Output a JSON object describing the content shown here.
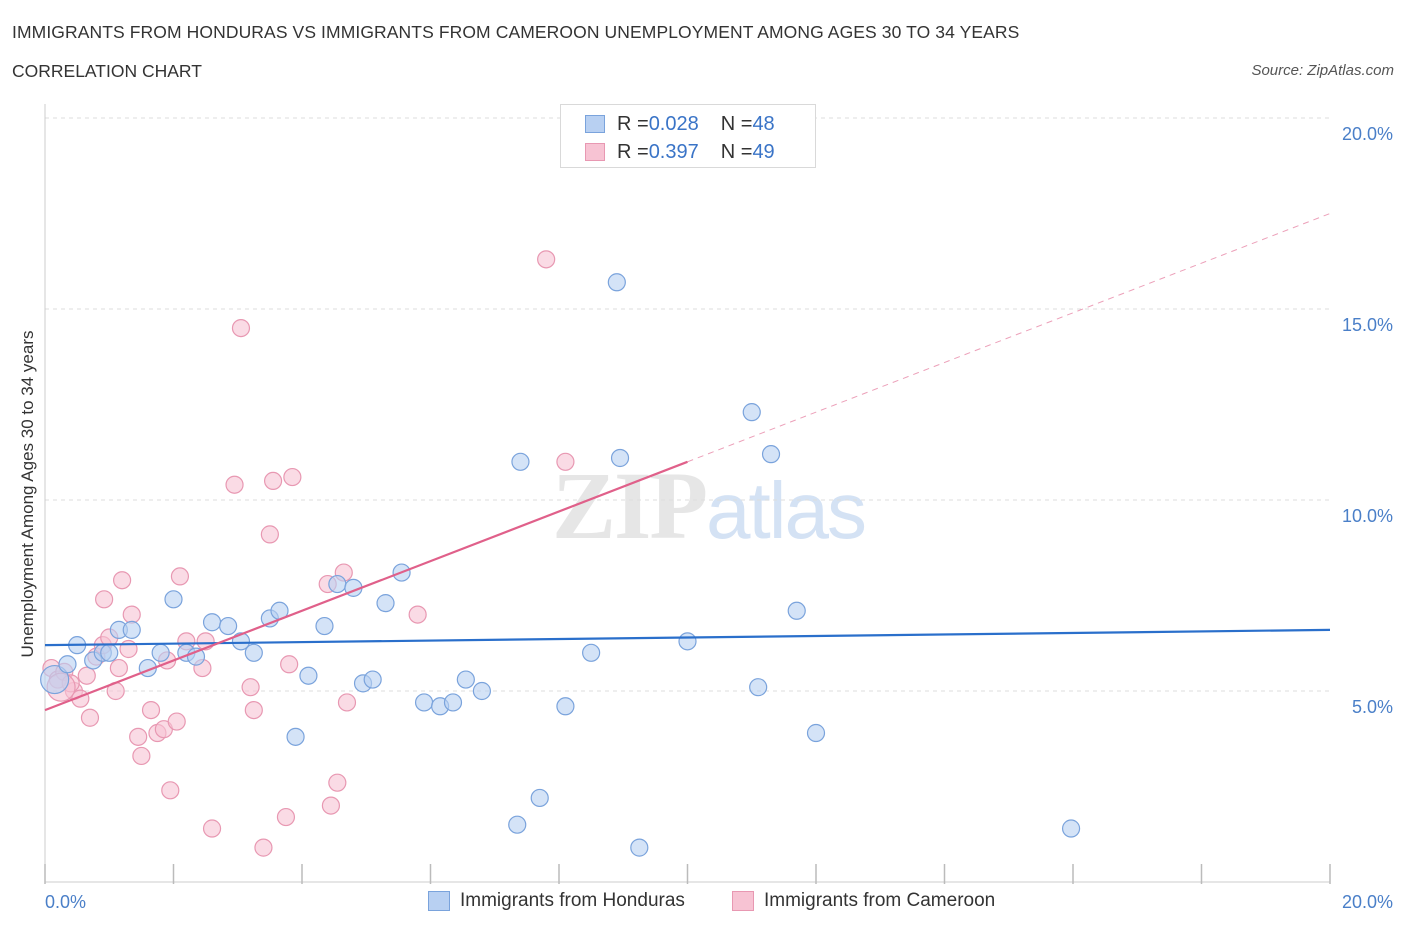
{
  "title": "IMMIGRANTS FROM HONDURAS VS IMMIGRANTS FROM CAMEROON UNEMPLOYMENT AMONG AGES 30 TO 34 YEARS",
  "subtitle": "CORRELATION CHART",
  "source": "Source: ZipAtlas.com",
  "watermark": {
    "zip": "ZIP",
    "atlas": "atlas"
  },
  "legend_top": {
    "honduras": {
      "r_label": "R = ",
      "r_value": "0.028",
      "n_label": "N = ",
      "n_value": "48"
    },
    "cameroon": {
      "r_label": "R = ",
      "r_value": "0.397",
      "n_label": "N = ",
      "n_value": "49"
    }
  },
  "colors": {
    "honduras_fill": "#b8d0f2",
    "honduras_stroke": "#7aa3dc",
    "honduras_line": "#2a6fcb",
    "cameroon_fill": "#f7c3d3",
    "cameroon_stroke": "#e898b2",
    "cameroon_line": "#e0608a",
    "grid": "#dddddd",
    "axis_text": "#4a7fc8"
  },
  "chart_data": {
    "type": "scatter",
    "title": "IMMIGRANTS FROM HONDURAS VS IMMIGRANTS FROM CAMEROON UNEMPLOYMENT AMONG AGES 30 TO 34 YEARS",
    "xlabel": "",
    "ylabel": "Unemployment Among Ages 30 to 34 years",
    "xlim": [
      0,
      20
    ],
    "ylim": [
      0,
      20
    ],
    "x_tick_labels": [
      "0.0%",
      "20.0%"
    ],
    "y_ticks": [
      5,
      10,
      15,
      20
    ],
    "y_tick_labels": [
      "5.0%",
      "10.0%",
      "15.0%",
      "20.0%"
    ],
    "grid": true,
    "series": [
      {
        "name": "Immigrants from Honduras",
        "R": 0.028,
        "N": 48,
        "trend": {
          "x": [
            0,
            20
          ],
          "y": [
            6.2,
            6.6
          ],
          "style": "solid"
        },
        "points": [
          {
            "x": 0.15,
            "y": 5.3,
            "big": true
          },
          {
            "x": 0.35,
            "y": 5.7
          },
          {
            "x": 0.5,
            "y": 6.2
          },
          {
            "x": 0.75,
            "y": 5.8
          },
          {
            "x": 0.9,
            "y": 6.0
          },
          {
            "x": 1.15,
            "y": 6.6
          },
          {
            "x": 1.35,
            "y": 6.6
          },
          {
            "x": 1.6,
            "y": 5.6
          },
          {
            "x": 1.8,
            "y": 6.0
          },
          {
            "x": 2.0,
            "y": 7.4
          },
          {
            "x": 2.2,
            "y": 6.0
          },
          {
            "x": 2.35,
            "y": 5.9
          },
          {
            "x": 2.6,
            "y": 6.8
          },
          {
            "x": 2.85,
            "y": 6.7
          },
          {
            "x": 3.05,
            "y": 6.3
          },
          {
            "x": 3.25,
            "y": 6.0
          },
          {
            "x": 3.5,
            "y": 6.9
          },
          {
            "x": 3.65,
            "y": 7.1
          },
          {
            "x": 3.9,
            "y": 3.8
          },
          {
            "x": 4.1,
            "y": 5.4
          },
          {
            "x": 4.35,
            "y": 6.7
          },
          {
            "x": 4.55,
            "y": 7.8
          },
          {
            "x": 4.8,
            "y": 7.7
          },
          {
            "x": 4.95,
            "y": 5.2
          },
          {
            "x": 5.1,
            "y": 5.3
          },
          {
            "x": 5.3,
            "y": 7.3
          },
          {
            "x": 5.55,
            "y": 8.1
          },
          {
            "x": 5.9,
            "y": 4.7
          },
          {
            "x": 6.15,
            "y": 4.6
          },
          {
            "x": 6.35,
            "y": 4.7
          },
          {
            "x": 6.55,
            "y": 5.3
          },
          {
            "x": 6.8,
            "y": 5.0
          },
          {
            "x": 7.35,
            "y": 1.5
          },
          {
            "x": 7.4,
            "y": 11.0
          },
          {
            "x": 7.7,
            "y": 2.2
          },
          {
            "x": 8.1,
            "y": 4.6
          },
          {
            "x": 8.5,
            "y": 6.0
          },
          {
            "x": 8.9,
            "y": 15.7
          },
          {
            "x": 8.95,
            "y": 11.1
          },
          {
            "x": 9.25,
            "y": 0.9
          },
          {
            "x": 10.0,
            "y": 6.3
          },
          {
            "x": 11.0,
            "y": 12.3
          },
          {
            "x": 11.1,
            "y": 5.1
          },
          {
            "x": 11.3,
            "y": 11.2
          },
          {
            "x": 11.7,
            "y": 7.1
          },
          {
            "x": 12.0,
            "y": 3.9
          },
          {
            "x": 15.97,
            "y": 1.4
          },
          {
            "x": 1.0,
            "y": 6.0
          }
        ]
      },
      {
        "name": "Immigrants from Cameroon",
        "R": 0.397,
        "N": 49,
        "trend": {
          "x": [
            0,
            10
          ],
          "y": [
            4.5,
            11.0
          ],
          "style": "solid",
          "extension": {
            "x": [
              10,
              20
            ],
            "y": [
              11.0,
              17.5
            ],
            "style": "dashed"
          }
        },
        "points": [
          {
            "x": 0.1,
            "y": 5.6
          },
          {
            "x": 0.2,
            "y": 5.3
          },
          {
            "x": 0.3,
            "y": 5.5
          },
          {
            "x": 0.45,
            "y": 5.0
          },
          {
            "x": 0.55,
            "y": 4.8
          },
          {
            "x": 0.65,
            "y": 5.4
          },
          {
            "x": 0.7,
            "y": 4.3
          },
          {
            "x": 0.8,
            "y": 5.9
          },
          {
            "x": 0.9,
            "y": 6.2
          },
          {
            "x": 0.92,
            "y": 7.4
          },
          {
            "x": 1.0,
            "y": 6.4
          },
          {
            "x": 1.1,
            "y": 5.0
          },
          {
            "x": 1.15,
            "y": 5.6
          },
          {
            "x": 1.2,
            "y": 7.9
          },
          {
            "x": 1.3,
            "y": 6.1
          },
          {
            "x": 1.35,
            "y": 7.0
          },
          {
            "x": 1.45,
            "y": 3.8
          },
          {
            "x": 1.5,
            "y": 3.3
          },
          {
            "x": 1.65,
            "y": 4.5
          },
          {
            "x": 1.75,
            "y": 3.9
          },
          {
            "x": 1.85,
            "y": 4.0
          },
          {
            "x": 1.9,
            "y": 5.8
          },
          {
            "x": 1.95,
            "y": 2.4
          },
          {
            "x": 2.05,
            "y": 4.2
          },
          {
            "x": 2.1,
            "y": 8.0
          },
          {
            "x": 2.2,
            "y": 6.3
          },
          {
            "x": 2.45,
            "y": 5.6
          },
          {
            "x": 2.5,
            "y": 6.3
          },
          {
            "x": 2.6,
            "y": 1.4
          },
          {
            "x": 2.95,
            "y": 10.4
          },
          {
            "x": 3.05,
            "y": 14.5
          },
          {
            "x": 3.2,
            "y": 5.1
          },
          {
            "x": 3.25,
            "y": 4.5
          },
          {
            "x": 3.4,
            "y": 0.9
          },
          {
            "x": 3.5,
            "y": 9.1
          },
          {
            "x": 3.55,
            "y": 10.5
          },
          {
            "x": 3.75,
            "y": 1.7
          },
          {
            "x": 3.8,
            "y": 5.7
          },
          {
            "x": 3.85,
            "y": 10.6
          },
          {
            "x": 4.4,
            "y": 7.8
          },
          {
            "x": 4.45,
            "y": 2.0
          },
          {
            "x": 4.55,
            "y": 2.6
          },
          {
            "x": 4.65,
            "y": 8.1
          },
          {
            "x": 4.7,
            "y": 4.7
          },
          {
            "x": 5.8,
            "y": 7.0
          },
          {
            "x": 7.8,
            "y": 16.3
          },
          {
            "x": 8.1,
            "y": 11.0
          },
          {
            "x": 0.4,
            "y": 5.2
          },
          {
            "x": 0.25,
            "y": 5.1,
            "big": true
          }
        ]
      }
    ],
    "legend": [
      "Immigrants from Honduras",
      "Immigrants from Cameroon"
    ]
  },
  "legend_bottom": {
    "honduras": "Immigrants from Honduras",
    "cameroon": "Immigrants from Cameroon"
  }
}
